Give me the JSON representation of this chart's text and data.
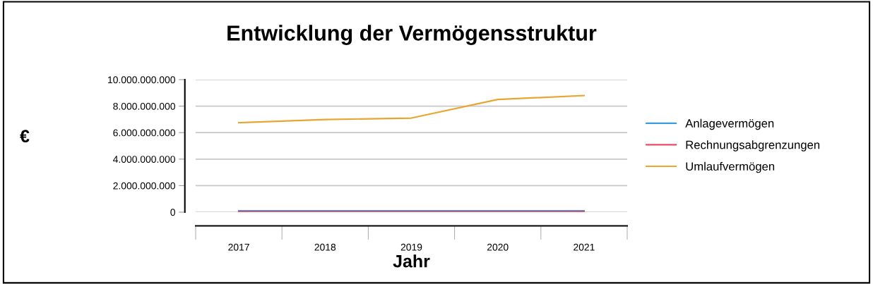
{
  "chart_data": {
    "type": "line",
    "title": "Entwicklung der Vermögensstruktur",
    "xlabel": "Jahr",
    "ylabel": "€",
    "categories": [
      "2017",
      "2018",
      "2019",
      "2020",
      "2021"
    ],
    "series": [
      {
        "name": "Anlagevermögen",
        "color": "#3b9de1",
        "values": [
          100000000,
          100000000,
          100000000,
          100000000,
          100000000
        ]
      },
      {
        "name": "Rechnungsabgrenzungen",
        "color": "#f04a63",
        "values": [
          30000000,
          30000000,
          30000000,
          30000000,
          30000000
        ]
      },
      {
        "name": "Umlaufvermögen",
        "color": "#e8a530",
        "values": [
          6750000000,
          6990000000,
          7100000000,
          8500000000,
          8800000000
        ]
      }
    ],
    "ylim": [
      0,
      10000000000
    ],
    "yticks": [
      {
        "value": 0,
        "label": "0"
      },
      {
        "value": 2000000000,
        "label": "2.000.000.000"
      },
      {
        "value": 4000000000,
        "label": "4.000.000.000"
      },
      {
        "value": 6000000000,
        "label": "6.000.000.000"
      },
      {
        "value": 8000000000,
        "label": "8.000.000.000"
      },
      {
        "value": 10000000000,
        "label": "10.000.000.000"
      }
    ],
    "grid": "y",
    "legend": "right",
    "marker": "none",
    "line_style": "solid"
  }
}
